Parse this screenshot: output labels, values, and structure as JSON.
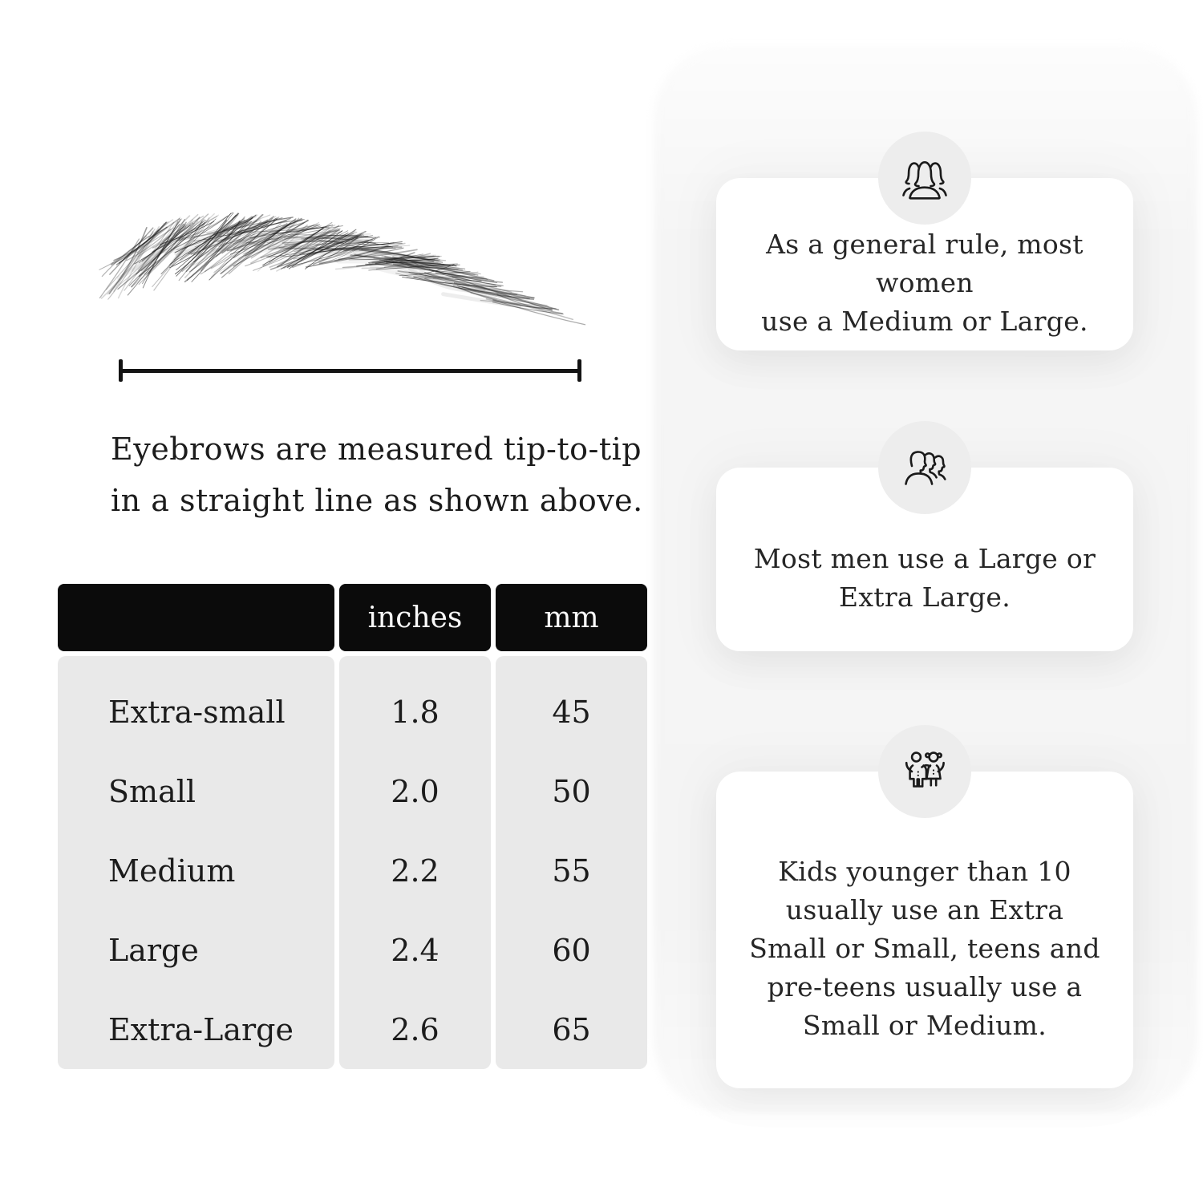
{
  "colors": {
    "canvas_bg": "#ffffff",
    "ink": "#1c1c1c",
    "line": "#141414",
    "table_header_bg": "#0b0b0b",
    "table_header_text": "#fafafa",
    "table_body_bg": "#e9e9e9",
    "card_bg": "#ffffff",
    "badge_bg": "#ededed"
  },
  "measurement": {
    "illustration": "eyebrow-illustration",
    "caption_lines": [
      "Eyebrows are measured tip-to-tip",
      "in a straight line as shown above."
    ]
  },
  "size_table": {
    "headers": [
      "",
      "inches",
      "mm"
    ],
    "rows": [
      {
        "size": "Extra-small",
        "inches": "1.8",
        "mm": "45"
      },
      {
        "size": "Small",
        "inches": "2.0",
        "mm": "50"
      },
      {
        "size": "Medium",
        "inches": "2.2",
        "mm": "55"
      },
      {
        "size": "Large",
        "inches": "2.4",
        "mm": "60"
      },
      {
        "size": "Extra-Large",
        "inches": "2.6",
        "mm": "65"
      }
    ]
  },
  "chart_data": {
    "type": "table",
    "columns": [
      "",
      "inches",
      "mm"
    ],
    "rows": [
      [
        "Extra-small",
        1.8,
        45
      ],
      [
        "Small",
        2.0,
        50
      ],
      [
        "Medium",
        2.2,
        55
      ],
      [
        "Large",
        2.4,
        60
      ],
      [
        "Extra-Large",
        2.6,
        65
      ]
    ]
  },
  "cards": [
    {
      "icon": "women-group-icon",
      "lines": [
        "As a general rule, most women",
        "use a Medium or Large."
      ]
    },
    {
      "icon": "men-group-icon",
      "lines": [
        "Most men use a Large or",
        "Extra Large."
      ]
    },
    {
      "icon": "kids-icon",
      "lines": [
        "Kids younger than 10",
        "usually use an Extra",
        "Small or Small, teens and",
        "pre-teens usually use a",
        "Small or Medium."
      ]
    }
  ]
}
